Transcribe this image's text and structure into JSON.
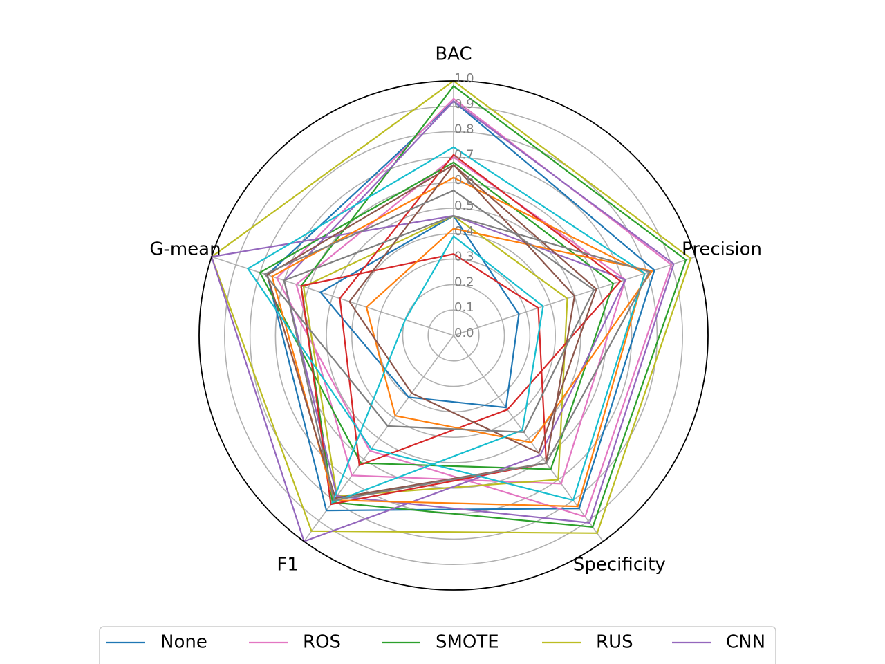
{
  "chart_data": {
    "type": "radar",
    "axes": [
      "BAC",
      "Precision",
      "Specificity",
      "F1",
      "G-mean"
    ],
    "rlim": [
      0,
      1
    ],
    "radial_ticks": [
      "0.0",
      "0.1",
      "0.2",
      "0.3",
      "0.4",
      "0.5",
      "0.6",
      "0.7",
      "0.8",
      "0.9",
      "1.0"
    ],
    "grid": true,
    "legend_position": "bottom",
    "legend": [
      "None",
      "ROS",
      "SMOTE",
      "RUS",
      "CNN",
      "None",
      "ROS",
      "SMOTE",
      "RUS",
      "CNN"
    ],
    "series": [
      {
        "name": "None",
        "color": "#1f77b4",
        "values": [
          0.92,
          0.83,
          0.84,
          0.85,
          0.77
        ]
      },
      {
        "name": "None",
        "color": "#1f77b4",
        "values": [
          0.47,
          0.27,
          0.35,
          0.3,
          0.55
        ]
      },
      {
        "name": "ROS",
        "color": "#e377c2",
        "values": [
          0.93,
          0.9,
          0.88,
          0.56,
          0.73
        ]
      },
      {
        "name": "ROS",
        "color": "#e377c2",
        "values": [
          0.7,
          0.71,
          0.72,
          0.68,
          0.65
        ]
      },
      {
        "name": "SMOTE",
        "color": "#2ca02c",
        "values": [
          0.98,
          0.96,
          0.93,
          0.81,
          0.63
        ]
      },
      {
        "name": "SMOTE",
        "color": "#2ca02c",
        "values": [
          0.68,
          0.66,
          0.65,
          0.62,
          0.8
        ]
      },
      {
        "name": "RUS",
        "color": "#bcbd22",
        "values": [
          1.0,
          0.98,
          0.96,
          0.95,
          1.0
        ]
      },
      {
        "name": "RUS",
        "color": "#bcbd22",
        "values": [
          0.47,
          0.47,
          0.7,
          0.78,
          0.62
        ]
      },
      {
        "name": "CNN",
        "color": "#9467bd",
        "values": [
          0.92,
          0.91,
          0.91,
          0.78,
          0.7
        ]
      },
      {
        "name": "CNN",
        "color": "#9467bd",
        "values": [
          0.47,
          0.71,
          0.58,
          1.0,
          1.0
        ]
      },
      {
        "name": "",
        "color": "#d62728",
        "values": [
          0.32,
          0.35,
          0.62,
          0.82,
          0.63
        ]
      },
      {
        "name": "",
        "color": "#d62728",
        "values": [
          0.71,
          0.69,
          0.36,
          0.63,
          0.47
        ]
      },
      {
        "name": "",
        "color": "#ff7f0e",
        "values": [
          0.42,
          0.82,
          0.52,
          0.39,
          0.36
        ]
      },
      {
        "name": "",
        "color": "#ff7f0e",
        "values": [
          0.62,
          0.79,
          0.83,
          0.8,
          0.75
        ]
      },
      {
        "name": "",
        "color": "#8c564b",
        "values": [
          0.67,
          0.59,
          0.57,
          0.28,
          0.43
        ]
      },
      {
        "name": "",
        "color": "#8c564b",
        "values": [
          0.67,
          0.5,
          0.62,
          0.79,
          0.77
        ]
      },
      {
        "name": "",
        "color": "#17becf",
        "values": [
          0.74,
          0.79,
          0.8,
          0.55,
          0.85
        ]
      },
      {
        "name": "",
        "color": "#17becf",
        "values": [
          0.39,
          0.37,
          0.46,
          0.81,
          0.2
        ]
      },
      {
        "name": "",
        "color": "#7f7f7f",
        "values": [
          0.57,
          0.58,
          0.47,
          0.44,
          0.78
        ]
      },
      {
        "name": "",
        "color": "#7f7f7f",
        "values": [
          0.47,
          0.81,
          0.62,
          0.8,
          0.7
        ]
      }
    ]
  }
}
